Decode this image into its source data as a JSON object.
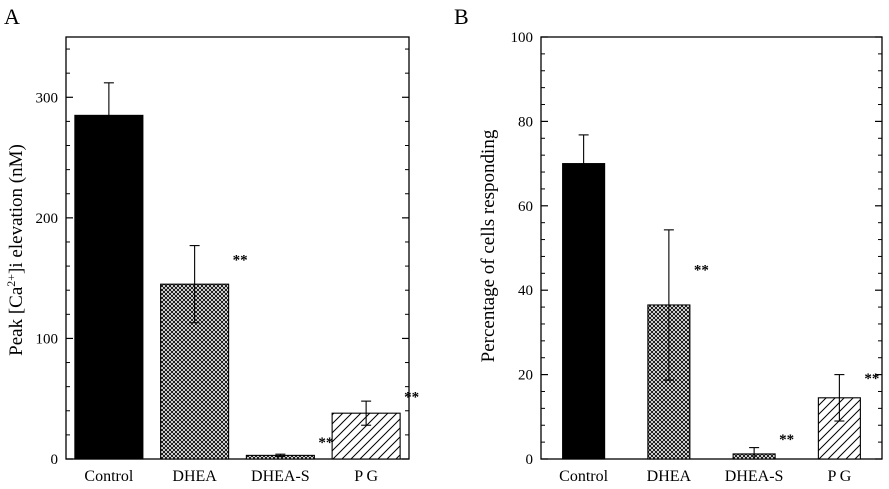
{
  "chart_data": [
    {
      "panel": "A",
      "type": "bar",
      "ylabel_main": "Peak [Ca",
      "ylabel_sup": "2+",
      "ylabel_rest": "]i elevation (nM)",
      "ylim": [
        0,
        350
      ],
      "yticks": [
        0,
        100,
        200,
        300
      ],
      "categories": [
        "Control",
        "DHEA",
        "DHEA-S",
        "P G"
      ],
      "values": [
        285,
        145,
        3,
        38
      ],
      "errors": [
        27,
        32,
        1,
        10
      ],
      "significance": [
        "",
        "**",
        "**",
        "**"
      ],
      "fills": [
        "solid",
        "crosshatch",
        "crosshatch",
        "diagonal"
      ]
    },
    {
      "panel": "B",
      "type": "bar",
      "ylabel": "Percentage of cells responding",
      "ylim": [
        0,
        100
      ],
      "yticks": [
        0,
        20,
        40,
        60,
        80,
        100
      ],
      "categories": [
        "Control",
        "DHEA",
        "DHEA-S",
        "P G"
      ],
      "values": [
        70,
        36.5,
        1.2,
        14.5
      ],
      "errors": [
        6.8,
        17.8,
        1.5,
        5.5
      ],
      "significance": [
        "",
        "**",
        "**",
        "**"
      ],
      "fills": [
        "solid",
        "crosshatch",
        "crosshatch",
        "diagonal"
      ]
    }
  ]
}
